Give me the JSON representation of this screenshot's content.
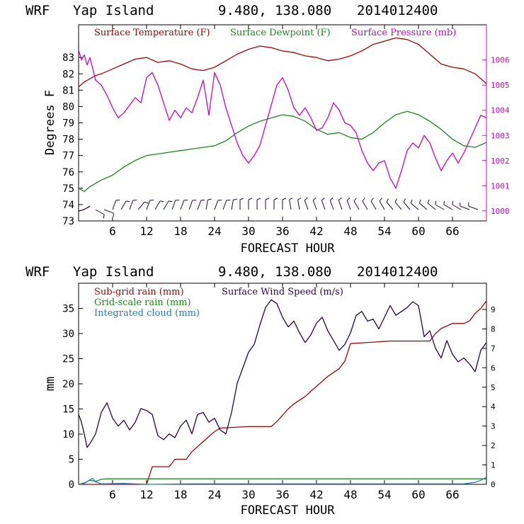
{
  "colors": {
    "temperature": "#b00000",
    "dewpoint": "#1a8a1a",
    "pressure": "#d000d0",
    "wind_barb": "#2a0050",
    "subgrid_rain": "#b00000",
    "grid_rain": "#1a8a1a",
    "cloud": "#1a7ad0",
    "wind_speed": "#2a0050"
  },
  "chart_data": [
    {
      "type": "line",
      "header": {
        "model": "WRF",
        "location": "Yap Island",
        "coords": "9.480, 138.080",
        "date": "2014012400"
      },
      "xlabel": "FORECAST HOUR",
      "ylabel": "Degrees F",
      "xlim": [
        0,
        72
      ],
      "ylim": [
        73,
        85
      ],
      "y2lim": [
        999.6,
        1007.4
      ],
      "x_ticks": [
        "6",
        "12",
        "18",
        "24",
        "30",
        "36",
        "42",
        "48",
        "54",
        "60",
        "66"
      ],
      "y_ticks": [
        "73",
        "74",
        "75",
        "76",
        "77",
        "78",
        "79",
        "80",
        "81",
        "82",
        "83"
      ],
      "y2_ticks": [
        "1000",
        "1001",
        "1002",
        "1003",
        "1004",
        "1005",
        "1006"
      ],
      "legend": [
        "Surface Temperature (F)",
        "Surface Dewpoint (F)",
        "Surface Pressure (mb)"
      ],
      "series": [
        {
          "name": "Surface Temperature (F)",
          "axis": "left",
          "x": [
            0,
            1,
            2,
            3,
            4,
            6,
            8,
            10,
            12,
            14,
            16,
            18,
            20,
            22,
            24,
            26,
            28,
            30,
            32,
            34,
            36,
            38,
            40,
            42,
            44,
            46,
            48,
            50,
            52,
            54,
            56,
            58,
            60,
            62,
            64,
            66,
            68,
            70,
            72
          ],
          "y": [
            81.2,
            81.5,
            81.7,
            81.9,
            82.0,
            82.3,
            82.6,
            82.9,
            83.0,
            82.7,
            82.8,
            82.6,
            82.3,
            82.2,
            82.4,
            82.8,
            83.2,
            83.5,
            83.7,
            83.6,
            83.4,
            83.3,
            83.1,
            83.0,
            82.8,
            82.9,
            83.1,
            83.4,
            83.8,
            84.0,
            84.2,
            84.1,
            83.8,
            83.2,
            82.6,
            82.4,
            82.3,
            82.0,
            81.4
          ]
        },
        {
          "name": "Surface Dewpoint (F)",
          "axis": "left",
          "x": [
            0,
            1,
            2,
            4,
            6,
            8,
            10,
            12,
            14,
            16,
            18,
            20,
            22,
            24,
            26,
            28,
            30,
            32,
            34,
            36,
            38,
            40,
            42,
            44,
            46,
            48,
            50,
            52,
            54,
            56,
            58,
            60,
            62,
            64,
            66,
            68,
            70,
            72
          ],
          "y": [
            75.0,
            74.8,
            75.1,
            75.5,
            75.8,
            76.3,
            76.7,
            77.0,
            77.1,
            77.2,
            77.3,
            77.4,
            77.5,
            77.6,
            77.9,
            78.4,
            78.8,
            79.1,
            79.3,
            79.5,
            79.4,
            79.1,
            78.6,
            78.3,
            78.4,
            78.1,
            78.0,
            78.4,
            79.0,
            79.5,
            79.7,
            79.5,
            79.1,
            78.6,
            78.0,
            77.6,
            77.5,
            77.8
          ]
        },
        {
          "name": "Surface Pressure (mb)",
          "axis": "right",
          "x": [
            0,
            0.5,
            1,
            1.5,
            2,
            3,
            4,
            5,
            6,
            7,
            8,
            9,
            10,
            11,
            12,
            13,
            14,
            15,
            16,
            17,
            18,
            19,
            20,
            21,
            22,
            23,
            24,
            25,
            26,
            27,
            28,
            29,
            30,
            31,
            32,
            33,
            34,
            35,
            36,
            37,
            38,
            39,
            40,
            41,
            42,
            43,
            44,
            45,
            46,
            47,
            48,
            49,
            50,
            51,
            52,
            53,
            54,
            55,
            56,
            57,
            58,
            59,
            60,
            61,
            62,
            63,
            64,
            65,
            66,
            67,
            68,
            69,
            70,
            71,
            72
          ],
          "y": [
            1006.4,
            1006.0,
            1006.2,
            1005.8,
            1006.1,
            1005.2,
            1005.0,
            1004.6,
            1004.1,
            1003.7,
            1003.9,
            1004.2,
            1004.5,
            1004.3,
            1005.3,
            1005.5,
            1005.0,
            1004.3,
            1003.6,
            1004.0,
            1003.7,
            1004.1,
            1003.9,
            1004.5,
            1005.2,
            1003.8,
            1005.5,
            1005.0,
            1004.1,
            1003.4,
            1002.7,
            1002.2,
            1001.9,
            1002.2,
            1002.6,
            1003.4,
            1004.2,
            1005.0,
            1005.3,
            1004.8,
            1004.1,
            1003.8,
            1004.1,
            1003.7,
            1003.2,
            1003.3,
            1003.7,
            1004.3,
            1004.0,
            1003.5,
            1003.4,
            1003.1,
            1002.4,
            1001.9,
            1001.6,
            1001.9,
            1002.0,
            1001.3,
            1000.9,
            1001.6,
            1002.4,
            1002.7,
            1002.5,
            1003.0,
            1002.7,
            1002.1,
            1001.6,
            1002.0,
            1002.3,
            1001.9,
            1002.3,
            1002.8,
            1003.3,
            1003.8,
            1003.7
          ]
        },
        {
          "name": "Wind barb row",
          "axis": "left",
          "x": [
            0,
            1,
            2
          ],
          "y": [
            73.6,
            73.7,
            73.9
          ]
        }
      ],
      "wind_barbs": {
        "hours": [
          3,
          4.5,
          6,
          7.5,
          9,
          10.5,
          12,
          13.5,
          15,
          16.5,
          18,
          19.5,
          21,
          22.5,
          24,
          25.5,
          27,
          28.5,
          30,
          31.5,
          33,
          34.5,
          36,
          37.5,
          39,
          40.5,
          42,
          43.5,
          45,
          46.5,
          48,
          49.5,
          51,
          52.5,
          54,
          55.5,
          57,
          58.5,
          60,
          61.5,
          63,
          64.5,
          66,
          67.5,
          69,
          70.5
        ],
        "direction_deg": [
          300,
          290,
          200,
          210,
          200,
          220,
          200,
          210,
          210,
          200,
          200,
          200,
          200,
          190,
          200,
          200,
          190,
          180,
          180,
          180,
          180,
          180,
          180,
          170,
          170,
          160,
          160,
          160,
          160,
          160,
          160,
          150,
          150,
          150,
          150,
          140,
          140,
          140,
          130,
          130,
          130,
          120,
          120,
          120,
          110,
          110
        ]
      }
    },
    {
      "type": "line",
      "header": {
        "model": "WRF",
        "location": "Yap Island",
        "coords": "9.480, 138.080",
        "date": "2014012400"
      },
      "xlabel": "FORECAST HOUR",
      "ylabel": "mm",
      "xlim": [
        0,
        72
      ],
      "ylim": [
        0,
        40
      ],
      "y2lim": [
        0,
        10.35
      ],
      "x_ticks": [
        "6",
        "12",
        "18",
        "24",
        "30",
        "36",
        "42",
        "48",
        "54",
        "60",
        "66"
      ],
      "y_ticks": [
        "0",
        "5",
        "10",
        "15",
        "20",
        "25",
        "30",
        "35"
      ],
      "y2_ticks": [
        "0",
        "1",
        "2",
        "3",
        "4",
        "5",
        "6",
        "7",
        "8",
        "9"
      ],
      "legend": [
        "Sub-grid rain (mm)",
        "Surface Wind Speed (m/s)",
        "Grid-scale rain (mm)",
        "Integrated cloud (mm)"
      ],
      "series": [
        {
          "name": "Sub-grid rain (mm)",
          "axis": "left",
          "x": [
            0,
            12,
            13,
            16,
            17,
            19,
            20,
            22,
            23,
            24,
            25,
            30,
            34,
            35,
            37,
            38,
            40,
            41,
            43,
            44,
            46,
            47,
            48,
            55,
            60,
            62,
            63,
            64,
            65,
            66,
            68,
            69,
            70,
            71,
            72
          ],
          "y": [
            0,
            0,
            3.5,
            3.5,
            5,
            5,
            6.5,
            8.5,
            9.5,
            10.5,
            11.2,
            11.5,
            11.5,
            12.5,
            15,
            16,
            17.5,
            18.5,
            20.5,
            21.5,
            23,
            24.5,
            28,
            28.5,
            28.5,
            28.5,
            30,
            31,
            31.5,
            32,
            32,
            32.5,
            34,
            35,
            36.5
          ]
        },
        {
          "name": "Surface Wind Speed (m/s)",
          "axis": "right",
          "x": [
            0,
            0.5,
            1,
            1.5,
            2,
            3,
            4,
            5,
            6,
            7,
            8,
            9,
            10,
            11,
            12,
            13,
            14,
            15,
            16,
            17,
            18,
            19,
            20,
            21,
            22,
            23,
            24,
            25,
            26,
            27,
            28,
            29,
            30,
            31,
            32,
            33,
            34,
            35,
            36,
            37,
            38,
            39,
            40,
            41,
            42,
            43,
            44,
            45,
            46,
            47,
            48,
            49,
            50,
            51,
            52,
            53,
            54,
            55,
            56,
            57,
            58,
            59,
            60,
            61,
            62,
            63,
            64,
            65,
            66,
            67,
            68,
            69,
            70,
            71,
            72
          ],
          "y": [
            3.6,
            3.2,
            2.6,
            1.9,
            2.1,
            2.6,
            3.7,
            4.2,
            3.4,
            3.0,
            3.3,
            2.8,
            3.2,
            3.9,
            3.8,
            3.6,
            2.5,
            2.3,
            2.6,
            2.4,
            3.0,
            3.3,
            2.6,
            3.6,
            3.7,
            3.2,
            3.4,
            2.8,
            2.6,
            3.7,
            5.2,
            6.0,
            6.8,
            7.2,
            8.2,
            9.1,
            9.5,
            9.3,
            8.6,
            8.1,
            8.4,
            7.8,
            7.3,
            7.7,
            8.3,
            8.6,
            7.9,
            7.4,
            6.9,
            7.2,
            7.8,
            8.7,
            8.9,
            8.4,
            8.5,
            8.0,
            8.6,
            9.2,
            8.7,
            8.9,
            9.1,
            9.4,
            9.2,
            7.6,
            7.9,
            7.0,
            6.5,
            7.4,
            6.7,
            6.3,
            6.5,
            6.2,
            5.8,
            6.9,
            7.3
          ]
        },
        {
          "name": "Grid-scale rain (mm)",
          "axis": "left",
          "x": [
            0,
            1,
            2,
            3,
            4,
            5,
            6,
            72
          ],
          "y": [
            0,
            0.3,
            0.8,
            0.6,
            1.0,
            1.1,
            1.1,
            1.1
          ]
        },
        {
          "name": "Integrated cloud (mm)",
          "axis": "left",
          "x": [
            0,
            1,
            2,
            2.5,
            3,
            4,
            8,
            12,
            20,
            30,
            40,
            50,
            60,
            68,
            70,
            71,
            72
          ],
          "y": [
            0,
            0.2,
            0.9,
            1.2,
            0.5,
            0.1,
            0.2,
            0,
            0.1,
            0.1,
            0.1,
            0.1,
            0.1,
            0.1,
            0.4,
            0.8,
            1.4
          ]
        }
      ]
    }
  ]
}
